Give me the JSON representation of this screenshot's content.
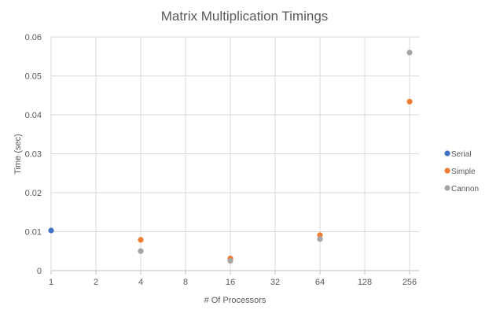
{
  "chart_data": {
    "type": "scatter",
    "title": "Matrix Multiplication Timings",
    "xlabel": "# Of Processors",
    "ylabel": "Time (sec)",
    "x_scale": "log2",
    "x_ticks": [
      1,
      2,
      4,
      8,
      16,
      32,
      64,
      128,
      256
    ],
    "x_tick_labels": [
      "1",
      "2",
      "4",
      "8",
      "16",
      "32",
      "64",
      "128",
      "256"
    ],
    "xlim": [
      1,
      256
    ],
    "ylim": [
      0,
      0.06
    ],
    "y_ticks": [
      0,
      0.01,
      0.02,
      0.03,
      0.04,
      0.05,
      0.06
    ],
    "y_tick_labels": [
      "0",
      "0.01",
      "0.02",
      "0.03",
      "0.04",
      "0.05",
      "0.06"
    ],
    "grid": true,
    "legend_position": "right",
    "series": [
      {
        "name": "Serial",
        "color": "#4472c4",
        "points": [
          [
            1,
            0.0103
          ]
        ]
      },
      {
        "name": "Simple",
        "color": "#ed7d31",
        "points": [
          [
            4,
            0.0079
          ],
          [
            16,
            0.0031
          ],
          [
            64,
            0.0091
          ],
          [
            256,
            0.0434
          ]
        ]
      },
      {
        "name": "Cannon",
        "color": "#a5a5a5",
        "points": [
          [
            4,
            0.005
          ],
          [
            16,
            0.0025
          ],
          [
            64,
            0.0081
          ],
          [
            256,
            0.056
          ]
        ]
      }
    ]
  }
}
